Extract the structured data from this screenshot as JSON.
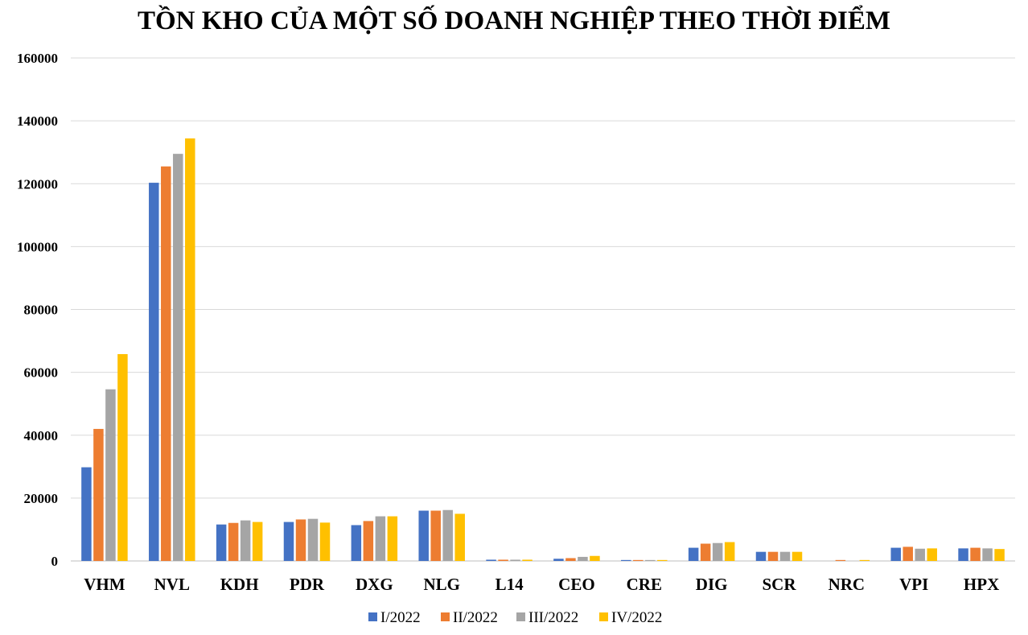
{
  "chart_data": {
    "type": "bar",
    "title": "TỒN KHO CỦA MỘT SỐ DOANH NGHIỆP THEO THỜI ĐIỂM",
    "xlabel": "",
    "ylabel": "",
    "ylim": [
      0,
      160000
    ],
    "yticks": [
      "0",
      "20000",
      "40000",
      "60000",
      "80000",
      "100000",
      "120000",
      "140000",
      "160000"
    ],
    "grid": true,
    "legend_position": "bottom",
    "categories": [
      "VHM",
      "NVL",
      "KDH",
      "PDR",
      "DXG",
      "NLG",
      "L14",
      "CEO",
      "CRE",
      "DIG",
      "SCR",
      "NRC",
      "VPI",
      "HPX"
    ],
    "series": [
      {
        "name": "I/2022",
        "color": "#4472C4",
        "values": [
          29800,
          120300,
          11600,
          12400,
          11400,
          16000,
          400,
          700,
          300,
          4200,
          2900,
          0,
          4200,
          4000
        ]
      },
      {
        "name": "II/2022",
        "color": "#ED7D31",
        "values": [
          42000,
          125500,
          12100,
          13200,
          12700,
          16000,
          400,
          900,
          300,
          5500,
          2900,
          300,
          4500,
          4200
        ]
      },
      {
        "name": "III/2022",
        "color": "#A5A5A5",
        "values": [
          54600,
          129500,
          12900,
          13400,
          14200,
          16200,
          400,
          1300,
          300,
          5700,
          2900,
          0,
          3900,
          4000
        ]
      },
      {
        "name": "IV/2022",
        "color": "#FFC000",
        "values": [
          65800,
          134400,
          12400,
          12200,
          14200,
          15000,
          400,
          1600,
          300,
          6000,
          2900,
          300,
          4000,
          3800
        ]
      }
    ]
  }
}
